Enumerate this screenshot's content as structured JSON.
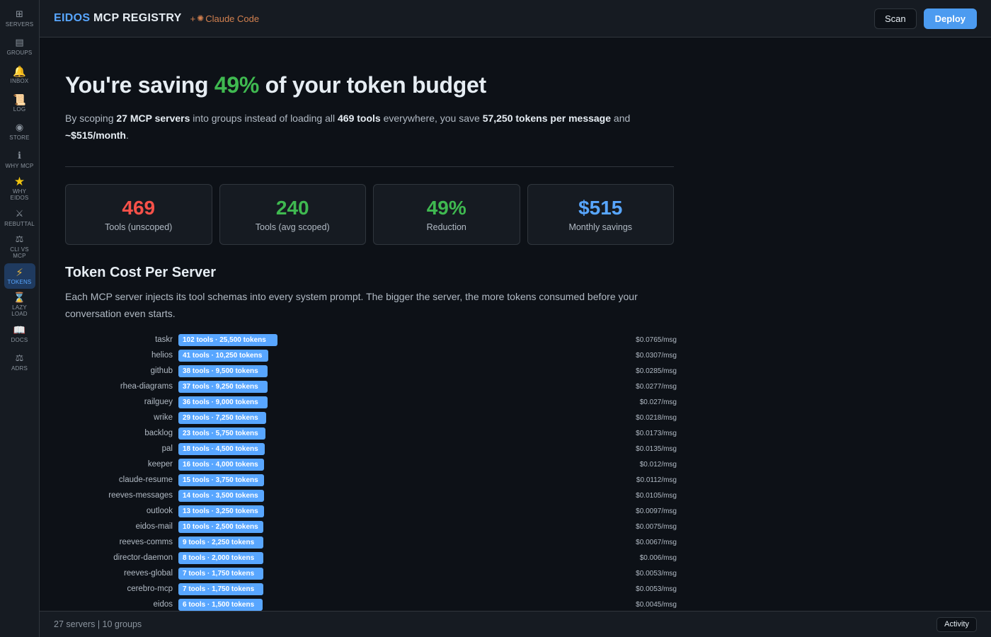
{
  "sidebar": {
    "items": [
      {
        "icon": "⊞",
        "label": "SERVERS"
      },
      {
        "icon": "▤",
        "label": "GROUPS"
      },
      {
        "icon": "🔔",
        "label": "INBOX"
      },
      {
        "icon": "📜",
        "label": "LOG"
      },
      {
        "icon": "◉",
        "label": "STORE"
      },
      {
        "icon": "ℹ",
        "label": "WHY MCP"
      },
      {
        "icon": "★",
        "label": "WHY\nEIDOS"
      },
      {
        "icon": "⚔",
        "label": "REBUTTAL"
      },
      {
        "icon": "⚖",
        "label": "CLI VS\nMCP"
      },
      {
        "icon": "⚡",
        "label": "TOKENS"
      },
      {
        "icon": "⌛",
        "label": "LAZY\nLOAD"
      },
      {
        "icon": "📖",
        "label": "DOCS"
      },
      {
        "icon": "⚖",
        "label": "ADRS"
      }
    ]
  },
  "header": {
    "brand_accent": "EIDOS",
    "brand_rest": " MCP REGISTRY",
    "plus": "+",
    "cc_icon": "✺",
    "cc_label": "Claude Code",
    "scan_label": "Scan",
    "deploy_label": "Deploy"
  },
  "hero": {
    "prefix": "You're saving ",
    "pct": "49%",
    "suffix": " of your token budget"
  },
  "summary": {
    "t1": "By scoping ",
    "b1": "27 MCP servers",
    "t2": " into groups instead of loading all ",
    "b2": "469 tools",
    "t3": " everywhere, you save ",
    "b3": "57,250 tokens per message",
    "t4": " and ",
    "b4": "~$515/month",
    "t5": "."
  },
  "stats": [
    {
      "value": "469",
      "caption": "Tools (unscoped)",
      "color": "#f85149"
    },
    {
      "value": "240",
      "caption": "Tools (avg scoped)",
      "color": "#3fb950"
    },
    {
      "value": "49%",
      "caption": "Reduction",
      "color": "#3fb950"
    },
    {
      "value": "$515",
      "caption": "Monthly savings",
      "color": "#58a6ff"
    }
  ],
  "section": {
    "title": "Token Cost Per Server",
    "desc": "Each MCP server injects its tool schemas into every system prompt. The bigger the server, the more tokens consumed before your conversation even starts."
  },
  "servers": [
    {
      "name": "taskr",
      "tools": 102,
      "label": "102 tools · 25,500 tokens",
      "cost": "$0.0765/msg"
    },
    {
      "name": "helios",
      "tools": 41,
      "label": "41 tools · 10,250 tokens",
      "cost": "$0.0307/msg"
    },
    {
      "name": "github",
      "tools": 38,
      "label": "38 tools · 9,500 tokens",
      "cost": "$0.0285/msg"
    },
    {
      "name": "rhea-diagrams",
      "tools": 37,
      "label": "37 tools · 9,250 tokens",
      "cost": "$0.0277/msg"
    },
    {
      "name": "railguey",
      "tools": 36,
      "label": "36 tools · 9,000 tokens",
      "cost": "$0.027/msg"
    },
    {
      "name": "wrike",
      "tools": 29,
      "label": "29 tools · 7,250 tokens",
      "cost": "$0.0218/msg"
    },
    {
      "name": "backlog",
      "tools": 23,
      "label": "23 tools · 5,750 tokens",
      "cost": "$0.0173/msg"
    },
    {
      "name": "pal",
      "tools": 18,
      "label": "18 tools · 4,500 tokens",
      "cost": "$0.0135/msg"
    },
    {
      "name": "keeper",
      "tools": 16,
      "label": "16 tools · 4,000 tokens",
      "cost": "$0.012/msg"
    },
    {
      "name": "claude-resume",
      "tools": 15,
      "label": "15 tools · 3,750 tokens",
      "cost": "$0.0112/msg"
    },
    {
      "name": "reeves-messages",
      "tools": 14,
      "label": "14 tools · 3,500 tokens",
      "cost": "$0.0105/msg"
    },
    {
      "name": "outlook",
      "tools": 13,
      "label": "13 tools · 3,250 tokens",
      "cost": "$0.0097/msg"
    },
    {
      "name": "eidos-mail",
      "tools": 10,
      "label": "10 tools · 2,500 tokens",
      "cost": "$0.0075/msg"
    },
    {
      "name": "reeves-comms",
      "tools": 9,
      "label": "9 tools · 2,250 tokens",
      "cost": "$0.0067/msg"
    },
    {
      "name": "director-daemon",
      "tools": 8,
      "label": "8 tools · 2,000 tokens",
      "cost": "$0.006/msg"
    },
    {
      "name": "reeves-global",
      "tools": 7,
      "label": "7 tools · 1,750 tokens",
      "cost": "$0.0053/msg"
    },
    {
      "name": "cerebro-mcp",
      "tools": 7,
      "label": "7 tools · 1,750 tokens",
      "cost": "$0.0053/msg"
    },
    {
      "name": "eidos",
      "tools": 6,
      "label": "6 tools · 1,500 tokens",
      "cost": "$0.0045/msg"
    }
  ],
  "footer": {
    "status": "27 servers | 10 groups",
    "activity_label": "Activity"
  }
}
